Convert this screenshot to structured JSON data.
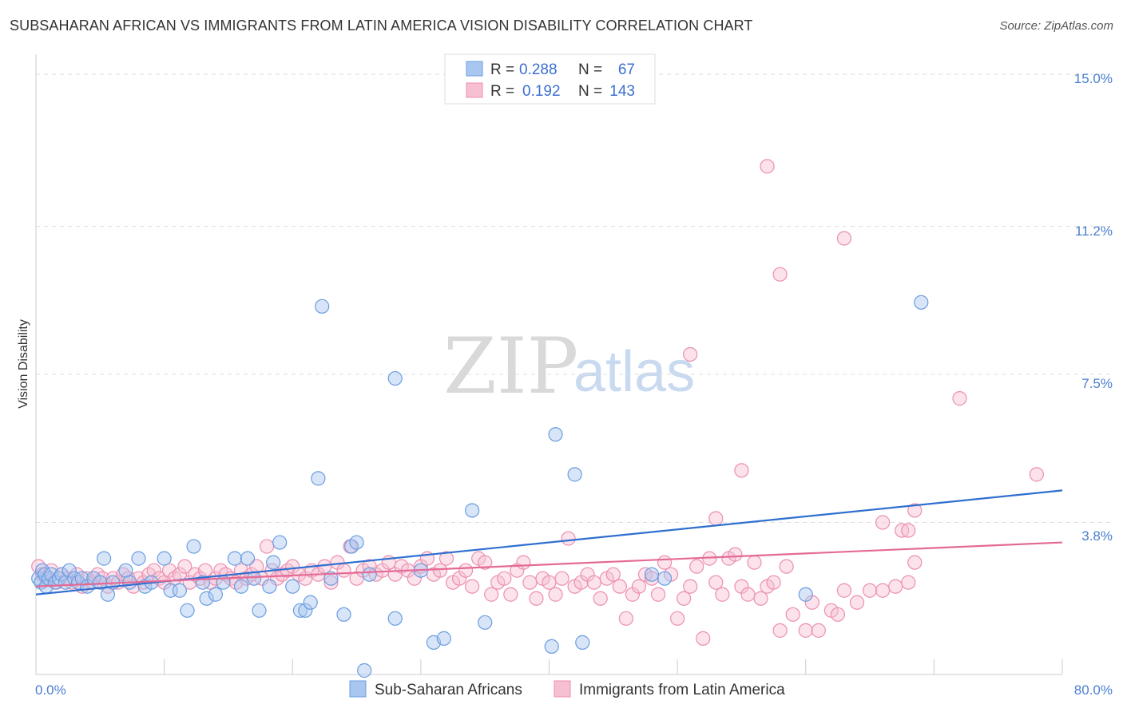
{
  "header": {
    "title": "SUBSAHARAN AFRICAN VS IMMIGRANTS FROM LATIN AMERICA VISION DISABILITY CORRELATION CHART",
    "source": "Source: ZipAtlas.com"
  },
  "watermark": {
    "zip": "ZIP",
    "atlas": "atlas"
  },
  "legend": {
    "rows": [
      {
        "r_label": "R =",
        "r_value": "0.288",
        "n_label": "N =",
        "n_value": "67"
      },
      {
        "r_label": "R =",
        "r_value": "0.192",
        "n_label": "N =",
        "n_value": "143"
      }
    ]
  },
  "bottom_legend": [
    "Sub-Saharan Africans",
    "Immigrants from Latin America"
  ],
  "chart_data": {
    "type": "scatter",
    "title": "SUBSAHARAN AFRICAN VS IMMIGRANTS FROM LATIN AMERICA VISION DISABILITY CORRELATION CHART",
    "xlabel": "",
    "ylabel": "Vision Disability",
    "xlim": [
      0,
      80
    ],
    "ylim": [
      0,
      15.5
    ],
    "y_ticks": [
      3.8,
      7.5,
      11.2,
      15.0
    ],
    "y_tick_labels": [
      "3.8%",
      "7.5%",
      "11.2%",
      "15.0%"
    ],
    "x_tick_labels": [
      "0.0%",
      "80.0%"
    ],
    "grid": true,
    "colors": {
      "blue": "#6a9de0",
      "blue_fill": "#a9c6f0",
      "blue_line": "#2f6fd0",
      "pink": "#ec8fb0",
      "pink_fill": "#f6bfd2",
      "pink_line": "#e46a96"
    },
    "series": [
      {
        "name": "Sub-Saharan Africans",
        "color": "#6a9de0",
        "R": 0.288,
        "N": 67,
        "trend": {
          "x": [
            0,
            80
          ],
          "y": [
            2.0,
            4.6
          ]
        },
        "points": [
          [
            0.2,
            2.4
          ],
          [
            0.4,
            2.3
          ],
          [
            0.5,
            2.6
          ],
          [
            0.7,
            2.5
          ],
          [
            0.8,
            2.2
          ],
          [
            1.0,
            2.4
          ],
          [
            1.2,
            2.5
          ],
          [
            1.5,
            2.3
          ],
          [
            1.8,
            2.4
          ],
          [
            2.0,
            2.5
          ],
          [
            2.3,
            2.3
          ],
          [
            2.6,
            2.6
          ],
          [
            3.0,
            2.4
          ],
          [
            3.3,
            2.3
          ],
          [
            3.6,
            2.4
          ],
          [
            4.0,
            2.2
          ],
          [
            4.5,
            2.4
          ],
          [
            5.0,
            2.3
          ],
          [
            5.3,
            2.9
          ],
          [
            5.6,
            2.0
          ],
          [
            6.0,
            2.3
          ],
          [
            7.0,
            2.6
          ],
          [
            7.3,
            2.3
          ],
          [
            8.0,
            2.9
          ],
          [
            8.5,
            2.2
          ],
          [
            9.0,
            2.3
          ],
          [
            10.0,
            2.9
          ],
          [
            10.5,
            2.1
          ],
          [
            11.2,
            2.1
          ],
          [
            11.8,
            1.6
          ],
          [
            12.3,
            3.2
          ],
          [
            13.0,
            2.3
          ],
          [
            13.3,
            1.9
          ],
          [
            14.0,
            2.0
          ],
          [
            14.6,
            2.3
          ],
          [
            15.5,
            2.9
          ],
          [
            16.0,
            2.2
          ],
          [
            16.5,
            2.9
          ],
          [
            17.0,
            2.4
          ],
          [
            17.4,
            1.6
          ],
          [
            18.2,
            2.2
          ],
          [
            18.5,
            2.8
          ],
          [
            19.0,
            3.3
          ],
          [
            20.0,
            2.2
          ],
          [
            20.6,
            1.6
          ],
          [
            21.0,
            1.6
          ],
          [
            21.4,
            1.8
          ],
          [
            22.0,
            4.9
          ],
          [
            22.3,
            9.2
          ],
          [
            23.0,
            2.4
          ],
          [
            24.0,
            1.5
          ],
          [
            24.6,
            3.2
          ],
          [
            25.0,
            3.3
          ],
          [
            25.6,
            0.1
          ],
          [
            26.0,
            2.5
          ],
          [
            28.0,
            7.4
          ],
          [
            28.0,
            1.4
          ],
          [
            30.0,
            2.6
          ],
          [
            31.0,
            0.8
          ],
          [
            31.8,
            0.9
          ],
          [
            34.0,
            4.1
          ],
          [
            35.0,
            1.3
          ],
          [
            40.5,
            6.0
          ],
          [
            42.0,
            5.0
          ],
          [
            42.6,
            0.8
          ],
          [
            40.2,
            0.7
          ],
          [
            48.0,
            2.5
          ],
          [
            49.0,
            2.4
          ],
          [
            60.0,
            2.0
          ],
          [
            69.0,
            9.3
          ]
        ]
      },
      {
        "name": "Immigrants from Latin America",
        "color": "#ec8fb0",
        "R": 0.192,
        "N": 143,
        "trend": {
          "x": [
            0,
            80
          ],
          "y": [
            2.2,
            3.3
          ]
        },
        "points": [
          [
            0.2,
            2.7
          ],
          [
            0.5,
            2.5
          ],
          [
            0.8,
            2.4
          ],
          [
            1.2,
            2.6
          ],
          [
            1.6,
            2.3
          ],
          [
            2.0,
            2.5
          ],
          [
            2.4,
            2.4
          ],
          [
            2.8,
            2.3
          ],
          [
            3.2,
            2.5
          ],
          [
            3.6,
            2.2
          ],
          [
            4.0,
            2.4
          ],
          [
            4.4,
            2.3
          ],
          [
            4.8,
            2.5
          ],
          [
            5.2,
            2.4
          ],
          [
            5.6,
            2.2
          ],
          [
            6.0,
            2.4
          ],
          [
            6.4,
            2.3
          ],
          [
            6.8,
            2.5
          ],
          [
            7.2,
            2.4
          ],
          [
            7.6,
            2.2
          ],
          [
            8.0,
            2.4
          ],
          [
            8.4,
            2.3
          ],
          [
            8.8,
            2.5
          ],
          [
            9.2,
            2.6
          ],
          [
            9.6,
            2.4
          ],
          [
            10.0,
            2.3
          ],
          [
            10.4,
            2.6
          ],
          [
            10.8,
            2.4
          ],
          [
            11.2,
            2.5
          ],
          [
            11.6,
            2.7
          ],
          [
            12.0,
            2.3
          ],
          [
            12.4,
            2.5
          ],
          [
            12.8,
            2.4
          ],
          [
            13.2,
            2.6
          ],
          [
            13.6,
            2.3
          ],
          [
            14.0,
            2.4
          ],
          [
            14.4,
            2.6
          ],
          [
            14.8,
            2.5
          ],
          [
            15.2,
            2.4
          ],
          [
            15.6,
            2.3
          ],
          [
            16.0,
            2.6
          ],
          [
            16.4,
            2.4
          ],
          [
            16.8,
            2.5
          ],
          [
            17.2,
            2.7
          ],
          [
            17.6,
            2.4
          ],
          [
            18.0,
            3.2
          ],
          [
            18.4,
            2.6
          ],
          [
            18.8,
            2.4
          ],
          [
            19.2,
            2.5
          ],
          [
            19.6,
            2.6
          ],
          [
            20.0,
            2.7
          ],
          [
            20.5,
            2.5
          ],
          [
            21.0,
            2.4
          ],
          [
            21.5,
            2.6
          ],
          [
            22.0,
            2.5
          ],
          [
            22.5,
            2.7
          ],
          [
            23.0,
            2.3
          ],
          [
            23.5,
            2.8
          ],
          [
            24.0,
            2.6
          ],
          [
            24.5,
            3.2
          ],
          [
            25.0,
            2.4
          ],
          [
            25.5,
            2.6
          ],
          [
            26.0,
            2.7
          ],
          [
            26.5,
            2.5
          ],
          [
            27.0,
            2.6
          ],
          [
            27.5,
            2.8
          ],
          [
            28.0,
            2.5
          ],
          [
            28.5,
            2.7
          ],
          [
            29.0,
            2.6
          ],
          [
            29.5,
            2.4
          ],
          [
            30.0,
            2.7
          ],
          [
            30.5,
            2.9
          ],
          [
            31.0,
            2.5
          ],
          [
            31.5,
            2.6
          ],
          [
            32.0,
            2.9
          ],
          [
            32.5,
            2.3
          ],
          [
            33.0,
            2.4
          ],
          [
            33.5,
            2.6
          ],
          [
            34.0,
            2.2
          ],
          [
            34.5,
            2.9
          ],
          [
            35.0,
            2.8
          ],
          [
            35.5,
            2.0
          ],
          [
            36.0,
            2.3
          ],
          [
            36.5,
            2.4
          ],
          [
            37.0,
            2.0
          ],
          [
            37.5,
            2.6
          ],
          [
            38.0,
            2.8
          ],
          [
            38.5,
            2.3
          ],
          [
            39.0,
            1.9
          ],
          [
            39.5,
            2.4
          ],
          [
            40.0,
            2.3
          ],
          [
            40.5,
            2.0
          ],
          [
            41.0,
            2.4
          ],
          [
            41.5,
            3.4
          ],
          [
            42.0,
            2.2
          ],
          [
            42.5,
            2.3
          ],
          [
            43.0,
            2.5
          ],
          [
            43.5,
            2.3
          ],
          [
            44.0,
            1.9
          ],
          [
            44.5,
            2.4
          ],
          [
            45.0,
            2.5
          ],
          [
            45.5,
            2.2
          ],
          [
            46.0,
            1.4
          ],
          [
            46.5,
            2.0
          ],
          [
            47.0,
            2.2
          ],
          [
            47.5,
            2.5
          ],
          [
            48.0,
            2.4
          ],
          [
            48.5,
            2.0
          ],
          [
            49.0,
            2.8
          ],
          [
            49.5,
            2.5
          ],
          [
            50.0,
            1.4
          ],
          [
            50.5,
            1.9
          ],
          [
            51.0,
            2.2
          ],
          [
            51.5,
            2.7
          ],
          [
            52.0,
            0.9
          ],
          [
            52.5,
            2.9
          ],
          [
            53.0,
            2.3
          ],
          [
            53.5,
            2.0
          ],
          [
            54.0,
            2.9
          ],
          [
            54.5,
            3.0
          ],
          [
            55.0,
            2.2
          ],
          [
            55.5,
            2.0
          ],
          [
            56.0,
            2.8
          ],
          [
            56.5,
            1.9
          ],
          [
            57.0,
            2.2
          ],
          [
            57.5,
            2.3
          ],
          [
            58.0,
            1.1
          ],
          [
            58.5,
            2.7
          ],
          [
            59.0,
            1.5
          ],
          [
            60.0,
            1.1
          ],
          [
            60.5,
            1.8
          ],
          [
            61.0,
            1.1
          ],
          [
            62.0,
            1.6
          ],
          [
            62.5,
            1.5
          ],
          [
            63.0,
            2.1
          ],
          [
            64.0,
            1.8
          ],
          [
            65.0,
            2.1
          ],
          [
            66.0,
            2.1
          ],
          [
            67.0,
            2.2
          ],
          [
            68.0,
            2.3
          ],
          [
            68.5,
            2.8
          ],
          [
            53.0,
            3.9
          ],
          [
            55.0,
            5.1
          ],
          [
            58.0,
            10.0
          ],
          [
            51.0,
            8.0
          ],
          [
            57.0,
            12.7
          ],
          [
            63.0,
            10.9
          ],
          [
            66.0,
            3.8
          ],
          [
            67.5,
            3.6
          ],
          [
            68.0,
            3.6
          ],
          [
            68.5,
            4.1
          ],
          [
            72.0,
            6.9
          ],
          [
            78.0,
            5.0
          ]
        ]
      }
    ]
  }
}
